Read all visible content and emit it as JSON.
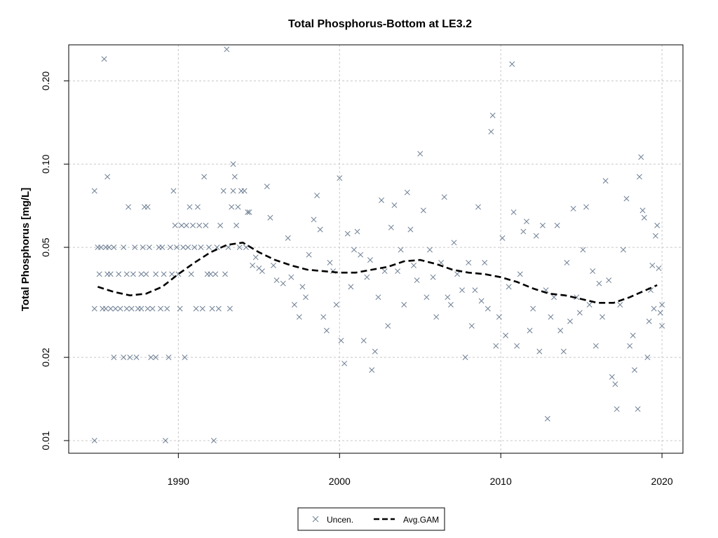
{
  "chart_data": {
    "type": "scatter",
    "title": "Total Phosphorus-Bottom at LE3.2",
    "xlabel": "",
    "ylabel": "Total Phosphorus [mg/L]",
    "y_scale": "log",
    "xlim": [
      1983.2,
      2021.3
    ],
    "ylim": [
      0.009,
      0.27
    ],
    "x_ticks": [
      1990,
      2000,
      2010,
      2020
    ],
    "x_tick_labels": [
      "1990",
      "2000",
      "2010",
      "2020"
    ],
    "y_ticks": [
      0.01,
      0.02,
      0.05,
      0.1,
      0.2
    ],
    "y_tick_labels": [
      "0.01",
      "0.02",
      "0.05",
      "0.10",
      "0.20"
    ],
    "grid": true,
    "legend_position": "bottom-center",
    "colors": {
      "points": "#6e7f94",
      "gam": "#000000",
      "grid": "#c8c8c8",
      "axis": "#000000"
    },
    "series": [
      {
        "name": "Uncen.",
        "marker": "x",
        "points": [
          [
            1984.8,
            0.08
          ],
          [
            1984.8,
            0.01
          ],
          [
            1984.8,
            0.03
          ],
          [
            1985.0,
            0.05
          ],
          [
            1985.1,
            0.04
          ],
          [
            1985.2,
            0.05
          ],
          [
            1985.3,
            0.03
          ],
          [
            1985.4,
            0.24
          ],
          [
            1985.5,
            0.05
          ],
          [
            1985.5,
            0.03
          ],
          [
            1985.6,
            0.09
          ],
          [
            1985.6,
            0.04
          ],
          [
            1985.7,
            0.05
          ],
          [
            1985.8,
            0.04
          ],
          [
            1985.8,
            0.03
          ],
          [
            1986.0,
            0.05
          ],
          [
            1986.0,
            0.02
          ],
          [
            1986.1,
            0.03
          ],
          [
            1986.3,
            0.04
          ],
          [
            1986.4,
            0.03
          ],
          [
            1986.6,
            0.05
          ],
          [
            1986.6,
            0.02
          ],
          [
            1986.8,
            0.04
          ],
          [
            1986.8,
            0.03
          ],
          [
            1986.9,
            0.07
          ],
          [
            1987.0,
            0.02
          ],
          [
            1987.1,
            0.03
          ],
          [
            1987.2,
            0.04
          ],
          [
            1987.3,
            0.05
          ],
          [
            1987.4,
            0.02
          ],
          [
            1987.5,
            0.03
          ],
          [
            1987.7,
            0.04
          ],
          [
            1987.7,
            0.03
          ],
          [
            1987.8,
            0.05
          ],
          [
            1987.9,
            0.07
          ],
          [
            1988.0,
            0.04
          ],
          [
            1988.1,
            0.03
          ],
          [
            1988.1,
            0.07
          ],
          [
            1988.2,
            0.05
          ],
          [
            1988.3,
            0.02
          ],
          [
            1988.4,
            0.03
          ],
          [
            1988.6,
            0.04
          ],
          [
            1988.6,
            0.02
          ],
          [
            1988.8,
            0.05
          ],
          [
            1988.9,
            0.03
          ],
          [
            1989.0,
            0.05
          ],
          [
            1989.1,
            0.04
          ],
          [
            1989.2,
            0.01
          ],
          [
            1989.3,
            0.03
          ],
          [
            1989.4,
            0.02
          ],
          [
            1989.5,
            0.05
          ],
          [
            1989.6,
            0.04
          ],
          [
            1989.7,
            0.08
          ],
          [
            1989.8,
            0.06
          ],
          [
            1989.9,
            0.05
          ],
          [
            1990.0,
            0.04
          ],
          [
            1990.1,
            0.03
          ],
          [
            1990.2,
            0.06
          ],
          [
            1990.3,
            0.05
          ],
          [
            1990.4,
            0.02
          ],
          [
            1990.5,
            0.06
          ],
          [
            1990.6,
            0.05
          ],
          [
            1990.7,
            0.07
          ],
          [
            1990.8,
            0.04
          ],
          [
            1990.9,
            0.06
          ],
          [
            1991.0,
            0.05
          ],
          [
            1991.1,
            0.03
          ],
          [
            1991.2,
            0.07
          ],
          [
            1991.3,
            0.06
          ],
          [
            1991.4,
            0.05
          ],
          [
            1991.5,
            0.03
          ],
          [
            1991.6,
            0.09
          ],
          [
            1991.7,
            0.06
          ],
          [
            1991.8,
            0.04
          ],
          [
            1991.9,
            0.05
          ],
          [
            1992.0,
            0.04
          ],
          [
            1992.1,
            0.03
          ],
          [
            1992.2,
            0.01
          ],
          [
            1992.3,
            0.04
          ],
          [
            1992.4,
            0.05
          ],
          [
            1992.5,
            0.03
          ],
          [
            1992.6,
            0.06
          ],
          [
            1992.8,
            0.08
          ],
          [
            1992.9,
            0.04
          ],
          [
            1993.0,
            0.26
          ],
          [
            1993.1,
            0.05
          ],
          [
            1993.2,
            0.03
          ],
          [
            1993.3,
            0.07
          ],
          [
            1993.4,
            0.08
          ],
          [
            1993.4,
            0.1
          ],
          [
            1993.5,
            0.09
          ],
          [
            1993.6,
            0.06
          ],
          [
            1993.7,
            0.07
          ],
          [
            1993.8,
            0.05
          ],
          [
            1993.9,
            0.08
          ],
          [
            1994.1,
            0.08
          ],
          [
            1994.2,
            0.05
          ],
          [
            1994.3,
            0.067
          ],
          [
            1994.4,
            0.067
          ],
          [
            1994.6,
            0.043
          ],
          [
            1994.8,
            0.046
          ],
          [
            1995.0,
            0.042
          ],
          [
            1995.2,
            0.041
          ],
          [
            1995.5,
            0.083
          ],
          [
            1995.7,
            0.064
          ],
          [
            1995.9,
            0.043
          ],
          [
            1996.1,
            0.038
          ],
          [
            1996.5,
            0.037
          ],
          [
            1996.8,
            0.054
          ],
          [
            1997.0,
            0.039
          ],
          [
            1997.2,
            0.031
          ],
          [
            1997.5,
            0.028
          ],
          [
            1997.7,
            0.036
          ],
          [
            1997.9,
            0.033
          ],
          [
            1998.1,
            0.047
          ],
          [
            1998.4,
            0.063
          ],
          [
            1998.6,
            0.077
          ],
          [
            1998.8,
            0.058
          ],
          [
            1999.0,
            0.028
          ],
          [
            1999.2,
            0.025
          ],
          [
            1999.4,
            0.044
          ],
          [
            1999.6,
            0.041
          ],
          [
            1999.8,
            0.031
          ],
          [
            2000.0,
            0.089
          ],
          [
            2000.1,
            0.023
          ],
          [
            2000.3,
            0.019
          ],
          [
            2000.5,
            0.056
          ],
          [
            2000.7,
            0.036
          ],
          [
            2000.9,
            0.049
          ],
          [
            2001.1,
            0.057
          ],
          [
            2001.3,
            0.047
          ],
          [
            2001.5,
            0.023
          ],
          [
            2001.7,
            0.039
          ],
          [
            2001.9,
            0.045
          ],
          [
            2002.0,
            0.018
          ],
          [
            2002.2,
            0.021
          ],
          [
            2002.4,
            0.033
          ],
          [
            2002.6,
            0.074
          ],
          [
            2002.8,
            0.041
          ],
          [
            2003.0,
            0.026
          ],
          [
            2003.2,
            0.059
          ],
          [
            2003.4,
            0.071
          ],
          [
            2003.6,
            0.041
          ],
          [
            2003.8,
            0.049
          ],
          [
            2004.0,
            0.031
          ],
          [
            2004.2,
            0.079
          ],
          [
            2004.4,
            0.058
          ],
          [
            2004.6,
            0.043
          ],
          [
            2004.8,
            0.038
          ],
          [
            2005.0,
            0.109
          ],
          [
            2005.2,
            0.068
          ],
          [
            2005.4,
            0.033
          ],
          [
            2005.6,
            0.049
          ],
          [
            2005.8,
            0.039
          ],
          [
            2006.0,
            0.028
          ],
          [
            2006.3,
            0.044
          ],
          [
            2006.5,
            0.076
          ],
          [
            2006.7,
            0.033
          ],
          [
            2006.9,
            0.031
          ],
          [
            2007.1,
            0.052
          ],
          [
            2007.3,
            0.04
          ],
          [
            2007.6,
            0.035
          ],
          [
            2007.8,
            0.02
          ],
          [
            2008.0,
            0.044
          ],
          [
            2008.2,
            0.026
          ],
          [
            2008.4,
            0.035
          ],
          [
            2008.6,
            0.07
          ],
          [
            2008.8,
            0.032
          ],
          [
            2009.0,
            0.044
          ],
          [
            2009.2,
            0.03
          ],
          [
            2009.4,
            0.131
          ],
          [
            2009.5,
            0.15
          ],
          [
            2009.7,
            0.022
          ],
          [
            2009.9,
            0.028
          ],
          [
            2010.1,
            0.054
          ],
          [
            2010.3,
            0.024
          ],
          [
            2010.5,
            0.036
          ],
          [
            2010.7,
            0.23
          ],
          [
            2010.8,
            0.067
          ],
          [
            2011.0,
            0.022
          ],
          [
            2011.2,
            0.04
          ],
          [
            2011.4,
            0.057
          ],
          [
            2011.6,
            0.062
          ],
          [
            2011.8,
            0.025
          ],
          [
            2012.0,
            0.03
          ],
          [
            2012.2,
            0.055
          ],
          [
            2012.4,
            0.021
          ],
          [
            2012.6,
            0.06
          ],
          [
            2012.8,
            0.035
          ],
          [
            2012.9,
            0.012
          ],
          [
            2013.1,
            0.028
          ],
          [
            2013.3,
            0.033
          ],
          [
            2013.5,
            0.06
          ],
          [
            2013.7,
            0.025
          ],
          [
            2013.9,
            0.021
          ],
          [
            2014.1,
            0.044
          ],
          [
            2014.3,
            0.027
          ],
          [
            2014.5,
            0.069
          ],
          [
            2014.7,
            0.033
          ],
          [
            2014.9,
            0.029
          ],
          [
            2015.1,
            0.049
          ],
          [
            2015.3,
            0.07
          ],
          [
            2015.5,
            0.031
          ],
          [
            2015.7,
            0.041
          ],
          [
            2015.9,
            0.022
          ],
          [
            2016.1,
            0.037
          ],
          [
            2016.3,
            0.028
          ],
          [
            2016.5,
            0.087
          ],
          [
            2016.7,
            0.038
          ],
          [
            2016.9,
            0.017
          ],
          [
            2017.1,
            0.016
          ],
          [
            2017.2,
            0.013
          ],
          [
            2017.4,
            0.031
          ],
          [
            2017.6,
            0.049
          ],
          [
            2017.8,
            0.075
          ],
          [
            2018.0,
            0.022
          ],
          [
            2018.2,
            0.024
          ],
          [
            2018.3,
            0.018
          ],
          [
            2018.5,
            0.013
          ],
          [
            2018.6,
            0.09
          ],
          [
            2018.7,
            0.106
          ],
          [
            2018.8,
            0.068
          ],
          [
            2018.9,
            0.064
          ],
          [
            2019.1,
            0.02
          ],
          [
            2019.2,
            0.027
          ],
          [
            2019.3,
            0.035
          ],
          [
            2019.4,
            0.043
          ],
          [
            2019.5,
            0.03
          ],
          [
            2019.6,
            0.055
          ],
          [
            2019.7,
            0.06
          ],
          [
            2019.8,
            0.042
          ],
          [
            2019.9,
            0.029
          ],
          [
            2020.0,
            0.026
          ],
          [
            2020.0,
            0.031
          ]
        ]
      },
      {
        "name": "Avg.GAM",
        "line_style": "dashed",
        "points": [
          [
            1985.0,
            0.036
          ],
          [
            1986.0,
            0.0345
          ],
          [
            1987.0,
            0.0335
          ],
          [
            1988.0,
            0.034
          ],
          [
            1989.0,
            0.036
          ],
          [
            1990.0,
            0.04
          ],
          [
            1991.0,
            0.044
          ],
          [
            1992.0,
            0.048
          ],
          [
            1993.0,
            0.051
          ],
          [
            1994.0,
            0.052
          ],
          [
            1995.0,
            0.048
          ],
          [
            1996.0,
            0.045
          ],
          [
            1997.0,
            0.043
          ],
          [
            1998.0,
            0.0415
          ],
          [
            1999.0,
            0.041
          ],
          [
            2000.0,
            0.0405
          ],
          [
            2001.0,
            0.0405
          ],
          [
            2002.0,
            0.0415
          ],
          [
            2003.0,
            0.0425
          ],
          [
            2004.0,
            0.0445
          ],
          [
            2005.0,
            0.045
          ],
          [
            2006.0,
            0.0435
          ],
          [
            2007.0,
            0.0415
          ],
          [
            2008.0,
            0.0405
          ],
          [
            2009.0,
            0.04
          ],
          [
            2010.0,
            0.039
          ],
          [
            2011.0,
            0.0375
          ],
          [
            2012.0,
            0.0355
          ],
          [
            2013.0,
            0.034
          ],
          [
            2014.0,
            0.0335
          ],
          [
            2015.0,
            0.0325
          ],
          [
            2016.0,
            0.0315
          ],
          [
            2017.0,
            0.0315
          ],
          [
            2018.0,
            0.033
          ],
          [
            2019.0,
            0.035
          ],
          [
            2019.7,
            0.0365
          ]
        ]
      }
    ]
  }
}
